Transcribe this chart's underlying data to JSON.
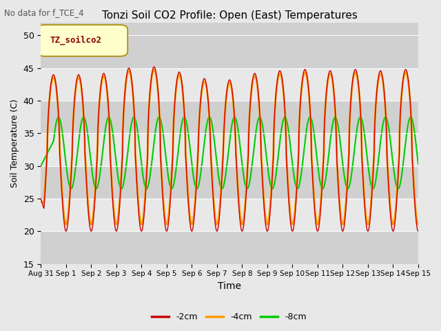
{
  "title": "Tonzi Soil CO2 Profile: Open (East) Temperatures",
  "subtitle": "No data for f_TCE_4",
  "xlabel": "Time",
  "ylabel": "Soil Temperature (C)",
  "legend_label": "TZ_soilco2",
  "ylim": [
    15,
    52
  ],
  "yticks": [
    15,
    20,
    25,
    30,
    35,
    40,
    45,
    50
  ],
  "x_tick_labels": [
    "Aug 31",
    "Sep 1",
    "Sep 2",
    "Sep 3",
    "Sep 4",
    "Sep 5",
    "Sep 6",
    "Sep 7",
    "Sep 8",
    "Sep 9",
    "Sep 10",
    "Sep 11",
    "Sep 12",
    "Sep 13",
    "Sep 14",
    "Sep 15"
  ],
  "line_2cm_color": "#cc0000",
  "line_4cm_color": "#ff9900",
  "line_8cm_color": "#00cc00",
  "bg_color": "#e8e8e8",
  "plot_bg_color": "#d8d8d8",
  "band_light_color": "#e8e8e8",
  "band_dark_color": "#d0d0d0",
  "legend_box_color": "#ffffcc",
  "legend_text_color": "#880000",
  "series_labels": [
    "-2cm",
    "-4cm",
    "-8cm"
  ],
  "num_days": 15,
  "samples_per_day": 96
}
